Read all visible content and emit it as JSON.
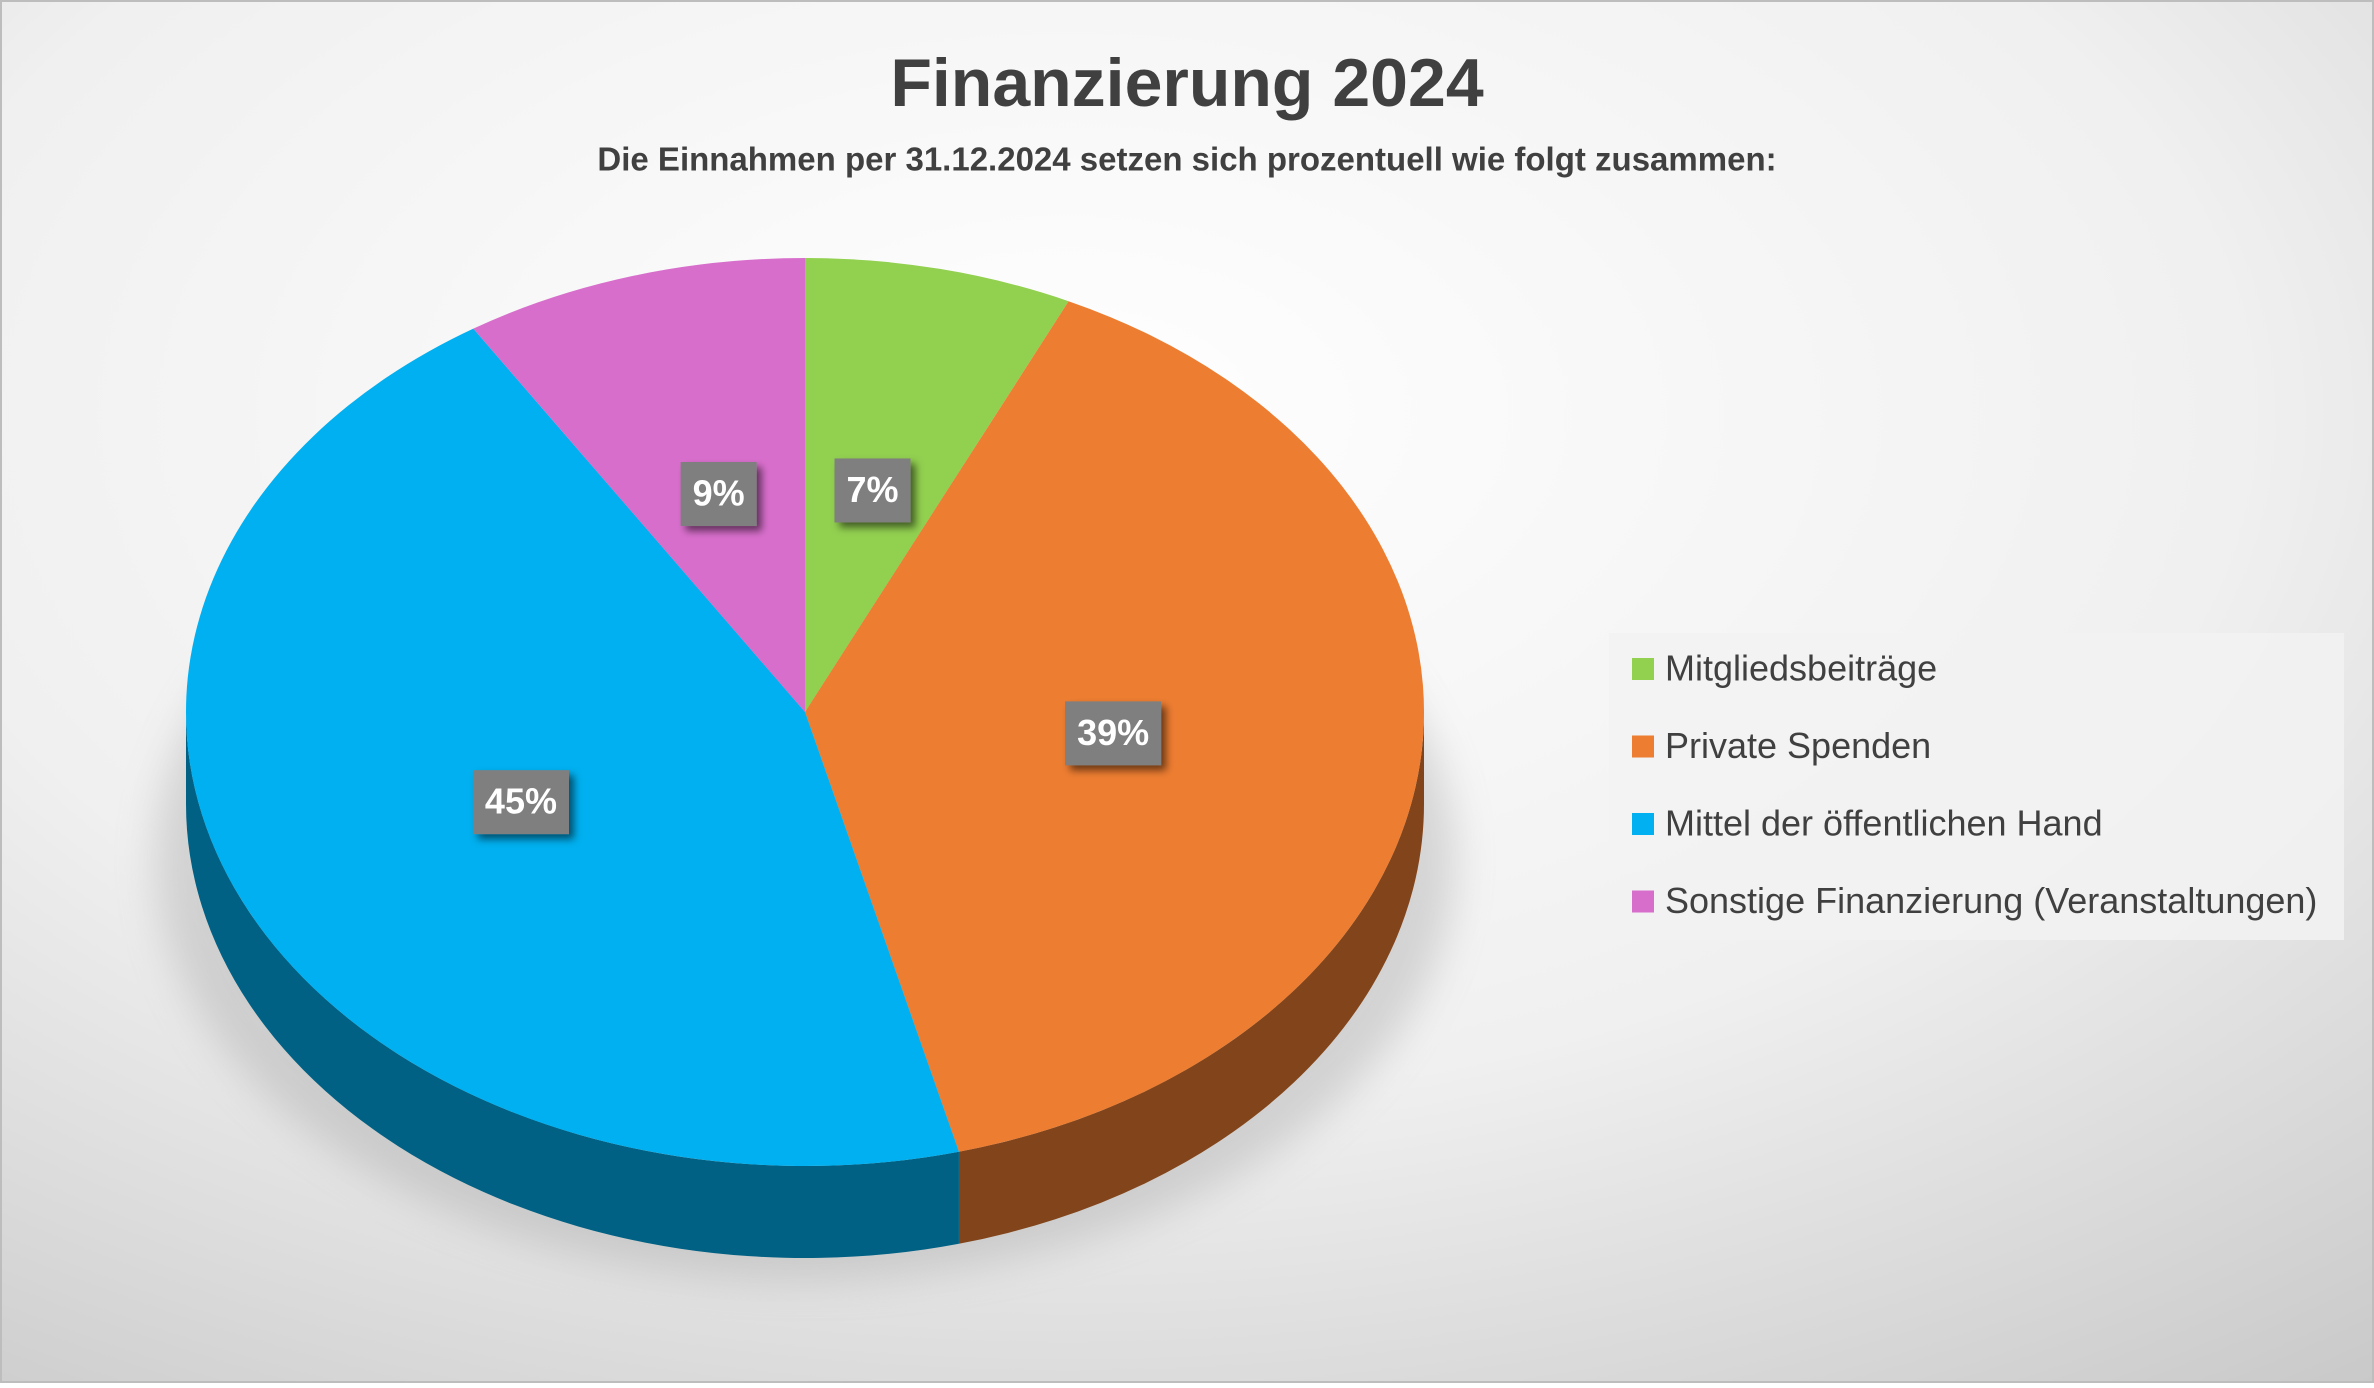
{
  "chart_data": {
    "type": "pie3d",
    "title": "Finanzierung 2024",
    "subtitle": "Die Einnahmen per 31.12.2024 setzen sich prozentuell wie folgt zusammen:",
    "categories": [
      "Mitgliedsbeiträge",
      "Private Spenden",
      "Mittel der öffentlichen Hand",
      "Sonstige Finanzierung (Veranstaltungen)"
    ],
    "values": [
      7,
      39,
      45,
      9
    ],
    "value_labels": [
      "7%",
      "39%",
      "45%",
      "9%"
    ],
    "colors": [
      "#92d050",
      "#ed7d31",
      "#00b0f0",
      "#d86ecc"
    ],
    "legend": "right"
  }
}
